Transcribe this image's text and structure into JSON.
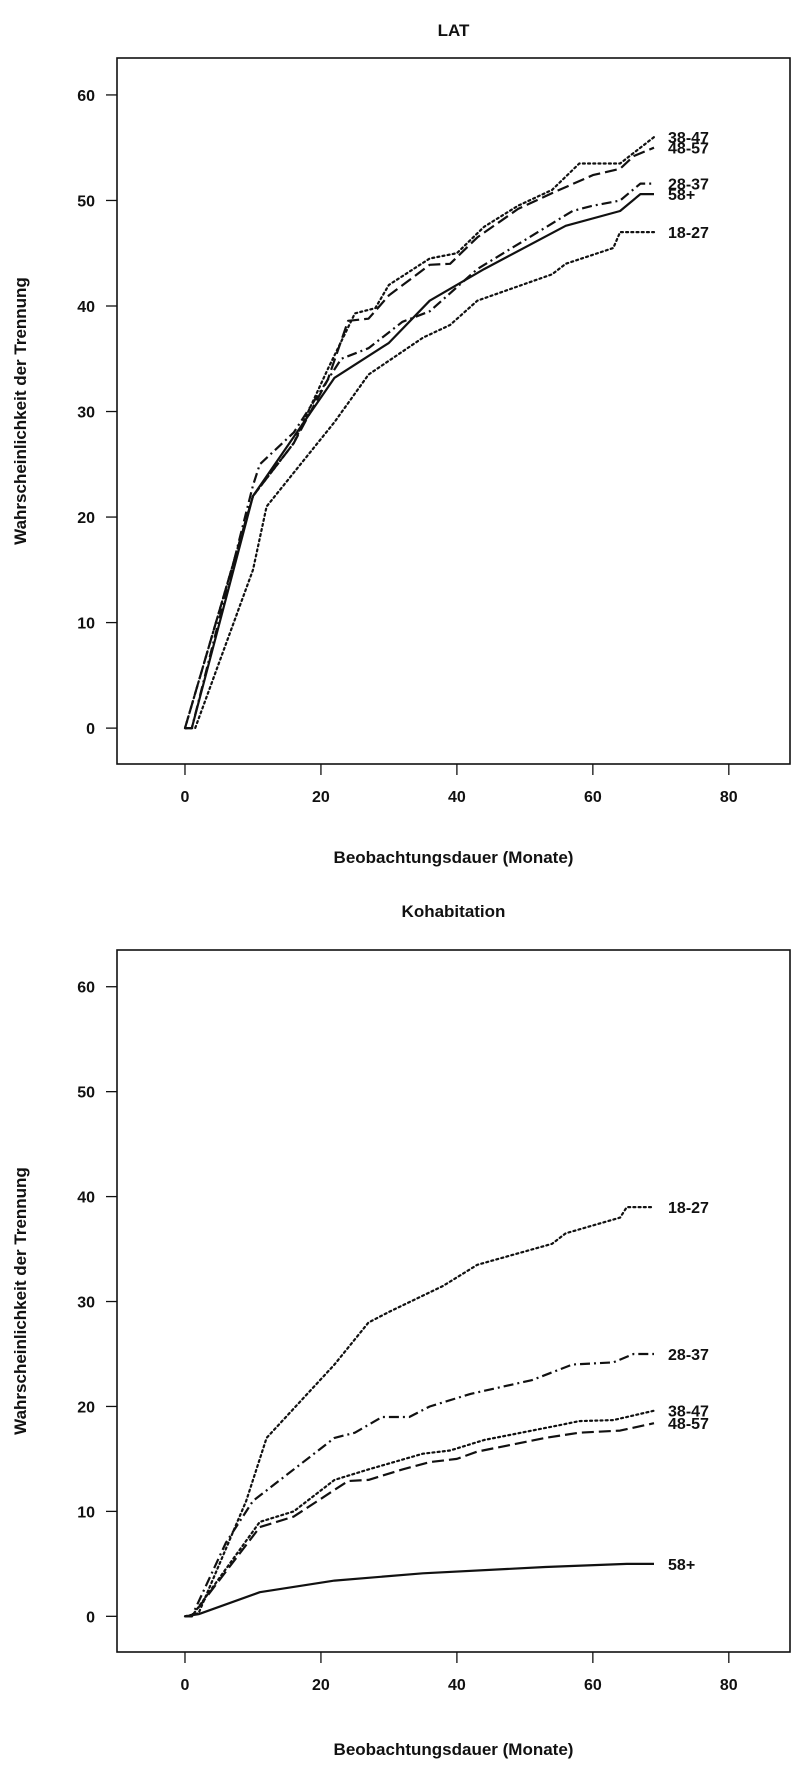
{
  "chart_data": [
    {
      "type": "line",
      "title": "LAT",
      "xlabel": "Beobachtungsdauer (Monate)",
      "ylabel": "Wahrscheinlichkeit der Trennung",
      "xlim": [
        -10,
        89
      ],
      "ylim": [
        -3.4,
        63.5
      ],
      "xticks": [
        0,
        20,
        40,
        60,
        80
      ],
      "yticks": [
        0,
        10,
        20,
        30,
        40,
        50,
        60
      ],
      "grid": false,
      "legend": "none",
      "series": [
        {
          "label": "18-27",
          "style": "dotted",
          "label_y": 47.0,
          "points": [
            [
              0,
              0
            ],
            [
              1.5,
              0
            ],
            [
              10,
              15
            ],
            [
              12,
              21
            ],
            [
              17,
              25
            ],
            [
              22,
              29
            ],
            [
              27,
              33.5
            ],
            [
              35,
              37
            ],
            [
              39,
              38.2
            ],
            [
              43,
              40.5
            ],
            [
              54,
              43
            ],
            [
              56,
              44
            ],
            [
              63,
              45.5
            ],
            [
              64,
              47
            ],
            [
              69,
              47
            ]
          ]
        },
        {
          "label": "28-37",
          "style": "dashdot",
          "label_y": 51.6,
          "points": [
            [
              0,
              0
            ],
            [
              1,
              0
            ],
            [
              10,
              23
            ],
            [
              11,
              25
            ],
            [
              16,
              28
            ],
            [
              23,
              35
            ],
            [
              27,
              36
            ],
            [
              32,
              38.5
            ],
            [
              36,
              39.5
            ],
            [
              43,
              43.5
            ],
            [
              57,
              49
            ],
            [
              60,
              49.5
            ],
            [
              64,
              50
            ],
            [
              67,
              51.6
            ],
            [
              69,
              51.6
            ]
          ]
        },
        {
          "label": "38-47",
          "style": "dotted",
          "label_y": 56.0,
          "points": [
            [
              0,
              0
            ],
            [
              10,
              22
            ],
            [
              16,
              27
            ],
            [
              21,
              34
            ],
            [
              25,
              39.3
            ],
            [
              28,
              39.8
            ],
            [
              30,
              42
            ],
            [
              36,
              44.5
            ],
            [
              40,
              45
            ],
            [
              44,
              47.5
            ],
            [
              49,
              49.5
            ],
            [
              54,
              51
            ],
            [
              58,
              53.5
            ],
            [
              64,
              53.5
            ],
            [
              69,
              56
            ]
          ]
        },
        {
          "label": "48-57",
          "style": "dashed",
          "label_y": 55.0,
          "points": [
            [
              0,
              0
            ],
            [
              10,
              22
            ],
            [
              16,
              27
            ],
            [
              21,
              33
            ],
            [
              24,
              38.6
            ],
            [
              27,
              38.8
            ],
            [
              30,
              41
            ],
            [
              36,
              43.9
            ],
            [
              39,
              44
            ],
            [
              43,
              46.5
            ],
            [
              49,
              49.2
            ],
            [
              54,
              50.7
            ],
            [
              60,
              52.4
            ],
            [
              64,
              53
            ],
            [
              66,
              54.2
            ],
            [
              69,
              55
            ]
          ]
        },
        {
          "label": "58+",
          "style": "solid",
          "label_y": 50.6,
          "points": [
            [
              0,
              0
            ],
            [
              1,
              0
            ],
            [
              10,
              22
            ],
            [
              22,
              33.2
            ],
            [
              30,
              36.5
            ],
            [
              36,
              40.5
            ],
            [
              44,
              43.5
            ],
            [
              56,
              47.6
            ],
            [
              64,
              49
            ],
            [
              67,
              50.6
            ],
            [
              69,
              50.6
            ]
          ]
        }
      ]
    },
    {
      "type": "line",
      "title": "Kohabitation",
      "xlabel": "Beobachtungsdauer (Monate)",
      "ylabel": "Wahrscheinlichkeit der Trennung",
      "xlim": [
        -10,
        89
      ],
      "ylim": [
        -3.4,
        63.5
      ],
      "xticks": [
        0,
        20,
        40,
        60,
        80
      ],
      "yticks": [
        0,
        10,
        20,
        30,
        40,
        50,
        60
      ],
      "grid": false,
      "legend": "none",
      "series": [
        {
          "label": "18-27",
          "style": "dotted",
          "label_y": 39.0,
          "points": [
            [
              0,
              0
            ],
            [
              2,
              0.3
            ],
            [
              9,
              11
            ],
            [
              10,
              13
            ],
            [
              12,
              17
            ],
            [
              22,
              24
            ],
            [
              27,
              28
            ],
            [
              30,
              29
            ],
            [
              38,
              31.5
            ],
            [
              43,
              33.5
            ],
            [
              54,
              35.5
            ],
            [
              56,
              36.5
            ],
            [
              64,
              38
            ],
            [
              65,
              39
            ],
            [
              69,
              39
            ]
          ]
        },
        {
          "label": "28-37",
          "style": "dashdot",
          "label_y": 25.0,
          "points": [
            [
              0,
              0
            ],
            [
              1,
              0
            ],
            [
              6,
              7
            ],
            [
              10,
              11
            ],
            [
              22,
              17
            ],
            [
              25,
              17.5
            ],
            [
              29,
              19
            ],
            [
              33,
              19
            ],
            [
              36,
              20
            ],
            [
              42,
              21.2
            ],
            [
              51,
              22.5
            ],
            [
              57,
              24
            ],
            [
              63,
              24.2
            ],
            [
              66,
              25
            ],
            [
              69,
              25
            ]
          ]
        },
        {
          "label": "38-47",
          "style": "dotted",
          "label_y": 19.6,
          "points": [
            [
              0,
              0
            ],
            [
              1,
              0
            ],
            [
              11,
              9
            ],
            [
              16,
              10
            ],
            [
              22,
              13
            ],
            [
              27,
              14
            ],
            [
              35,
              15.5
            ],
            [
              39,
              15.8
            ],
            [
              44,
              16.8
            ],
            [
              55,
              18.2
            ],
            [
              58,
              18.6
            ],
            [
              63,
              18.7
            ],
            [
              69,
              19.6
            ]
          ]
        },
        {
          "label": "48-57",
          "style": "dashed",
          "label_y": 18.4,
          "points": [
            [
              0,
              0
            ],
            [
              1,
              0
            ],
            [
              11,
              8.5
            ],
            [
              16,
              9.5
            ],
            [
              24,
              12.9
            ],
            [
              27,
              13
            ],
            [
              32,
              14
            ],
            [
              36,
              14.7
            ],
            [
              40,
              15
            ],
            [
              43,
              15.7
            ],
            [
              53,
              17
            ],
            [
              58,
              17.5
            ],
            [
              64,
              17.7
            ],
            [
              69,
              18.4
            ]
          ]
        },
        {
          "label": "58+",
          "style": "solid",
          "label_y": 5.0,
          "points": [
            [
              0,
              0
            ],
            [
              2,
              0.2
            ],
            [
              11,
              2.3
            ],
            [
              22,
              3.4
            ],
            [
              35,
              4.1
            ],
            [
              53,
              4.7
            ],
            [
              65,
              5
            ],
            [
              69,
              5
            ]
          ]
        }
      ]
    }
  ]
}
